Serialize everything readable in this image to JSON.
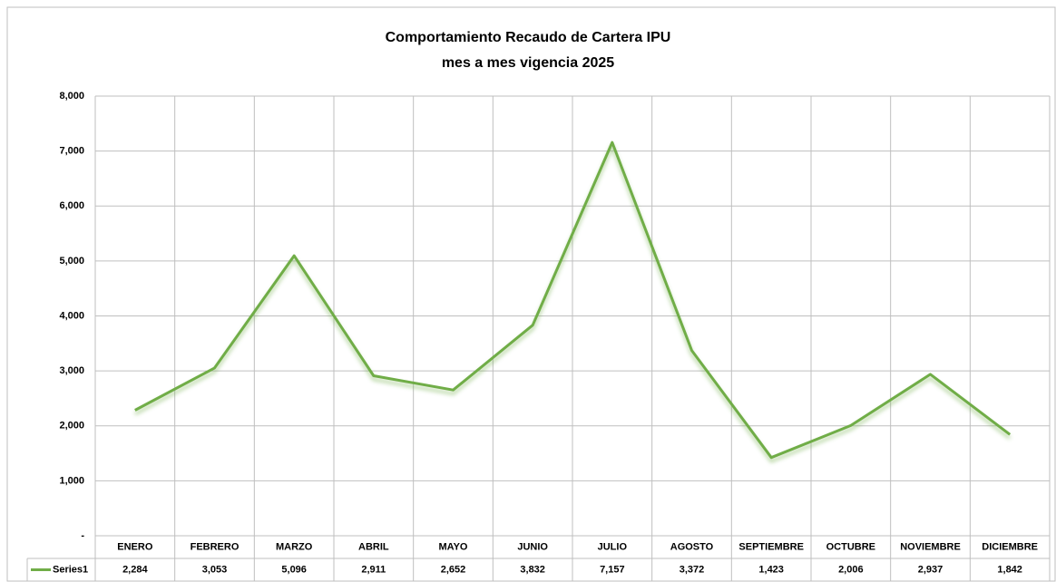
{
  "chart_data": {
    "type": "line",
    "title": "Comportamiento Recaudo de Cartera IPU",
    "subtitle": "mes a mes vigencia 2025",
    "categories": [
      "ENERO",
      "FEBRERO",
      "MARZO",
      "ABRIL",
      "MAYO",
      "JUNIO",
      "JULIO",
      "AGOSTO",
      "SEPTIEMBRE",
      "OCTUBRE",
      "NOVIEMBRE",
      "DICIEMBRE"
    ],
    "series": [
      {
        "name": "Series1",
        "color": "#70ad47",
        "values": [
          2284,
          3053,
          5096,
          2911,
          2652,
          3832,
          7157,
          3372,
          1423,
          2006,
          2937,
          1842
        ],
        "value_labels": [
          "2,284",
          "3,053",
          "5,096",
          "2,911",
          "2,652",
          "3,832",
          "7,157",
          "3,372",
          "1,423",
          "2,006",
          "2,937",
          "1,842"
        ]
      }
    ],
    "ylim": [
      0,
      8000
    ],
    "yticks": [
      {
        "value": 0,
        "label": "-"
      },
      {
        "value": 1000,
        "label": "1,000"
      },
      {
        "value": 2000,
        "label": "2,000"
      },
      {
        "value": 3000,
        "label": "3,000"
      },
      {
        "value": 4000,
        "label": "4,000"
      },
      {
        "value": 5000,
        "label": "5,000"
      },
      {
        "value": 6000,
        "label": "6,000"
      },
      {
        "value": 7000,
        "label": "7,000"
      },
      {
        "value": 8000,
        "label": "8,000"
      }
    ],
    "grid": true
  }
}
